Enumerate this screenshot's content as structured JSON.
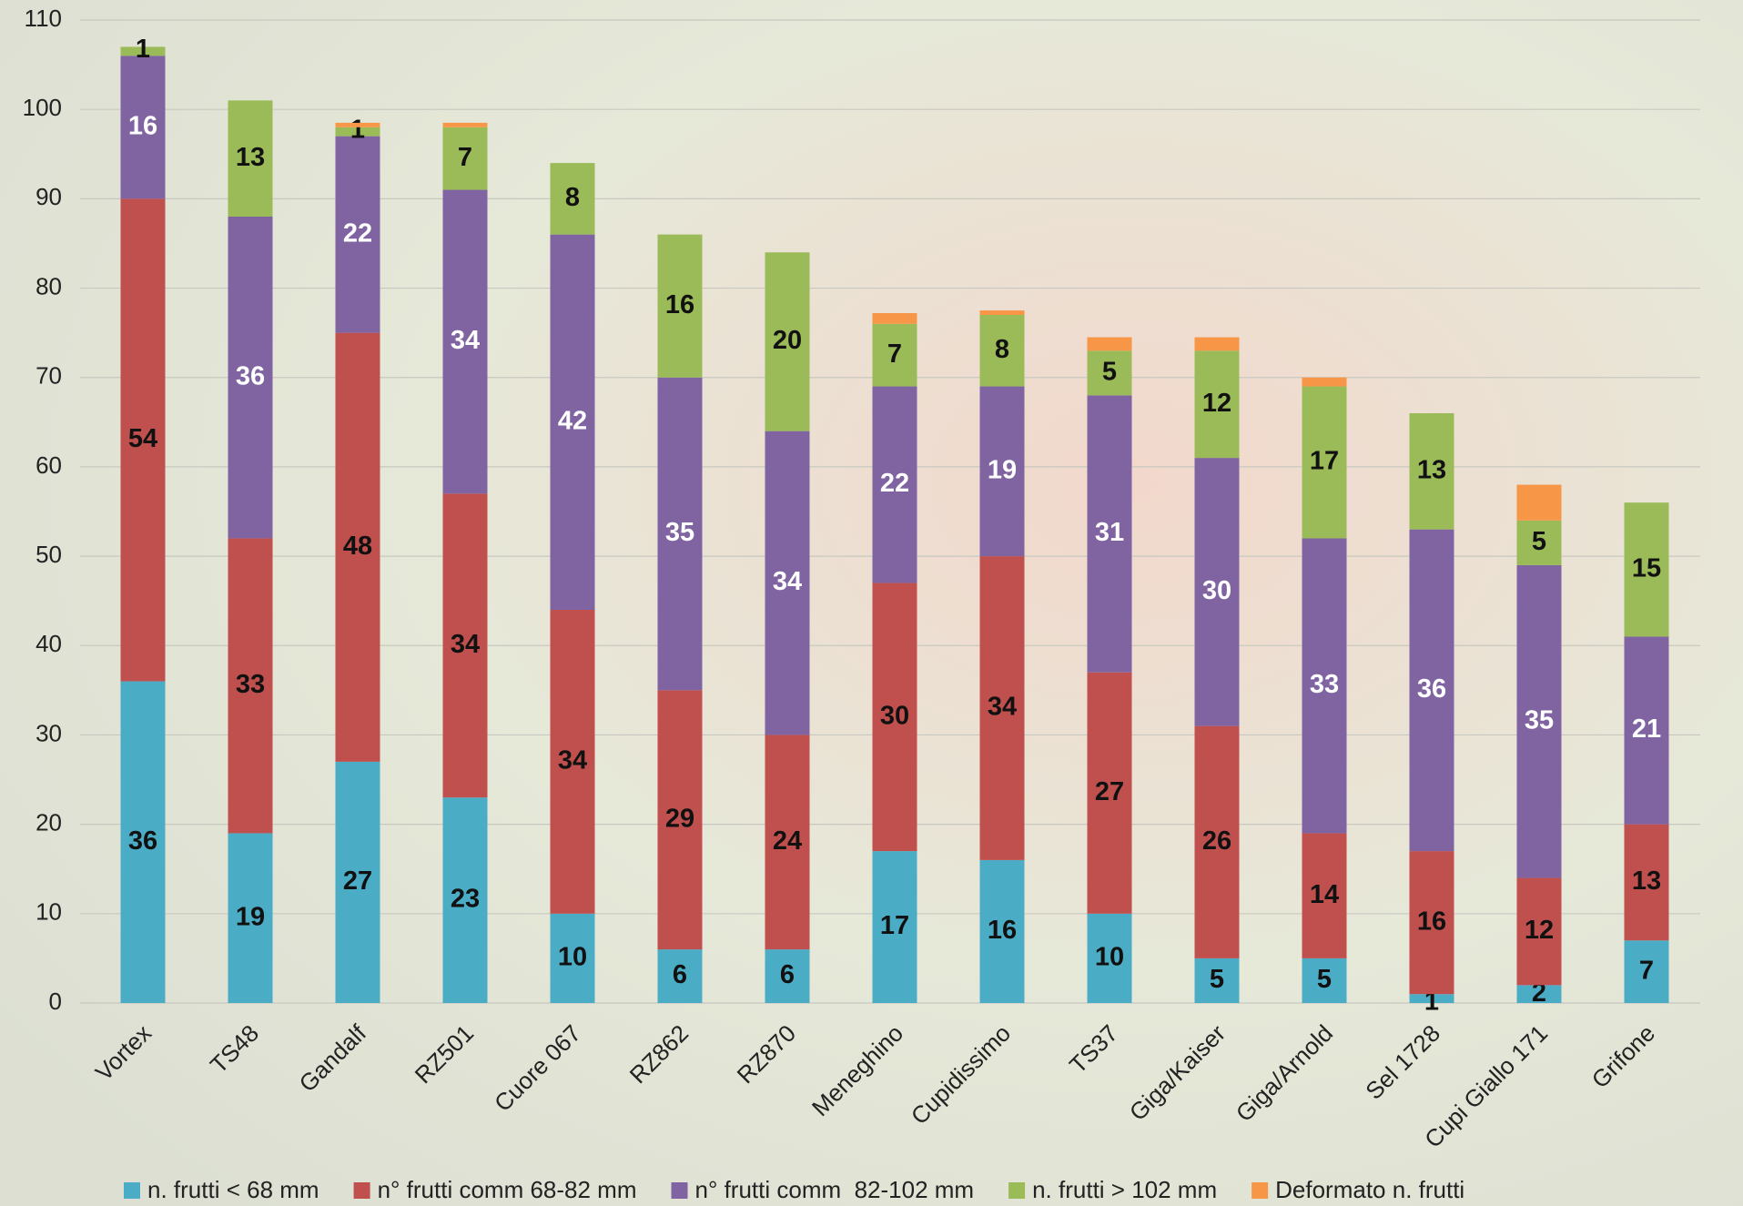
{
  "chart_data": {
    "type": "stacked_bar",
    "categories": [
      "Vortex",
      "TS48",
      "Gandalf",
      "RZ501",
      "Cuore 067",
      "RZ862",
      "RZ870",
      "Meneghino",
      "Cupidissimo",
      "TS37",
      "Giga/Kaiser",
      "Giga/Arnold",
      "Sel 1728",
      "Cupi Giallo 171",
      "Grifone"
    ],
    "series": [
      {
        "name": "n. frutti < 68 mm",
        "color": "#4bacc6",
        "label_color": "#111111",
        "values": [
          36,
          19,
          27,
          23,
          10,
          6,
          6,
          17,
          16,
          10,
          5,
          5,
          1,
          2,
          7
        ]
      },
      {
        "name": "n° frutti comm 68-82 mm",
        "color": "#c0504d",
        "label_color": "#111111",
        "values": [
          54,
          33,
          48,
          34,
          34,
          29,
          24,
          30,
          34,
          27,
          26,
          14,
          16,
          12,
          13
        ]
      },
      {
        "name": "n° frutti comm  82-102 mm",
        "color": "#8064a2",
        "label_color": "#ffffff",
        "values": [
          16,
          36,
          22,
          34,
          42,
          35,
          34,
          22,
          19,
          31,
          30,
          33,
          36,
          35,
          21
        ]
      },
      {
        "name": "n. frutti > 102 mm",
        "color": "#9bbb59",
        "label_color": "#111111",
        "values": [
          1,
          13,
          1,
          7,
          8,
          16,
          20,
          7,
          8,
          5,
          12,
          17,
          13,
          5,
          15
        ]
      },
      {
        "name": "Deformato n. frutti",
        "color": "#f79646",
        "values": [
          0,
          0,
          0.5,
          0.5,
          0,
          0,
          0,
          1.2,
          0.5,
          1.5,
          1.5,
          1,
          0,
          4,
          0
        ]
      }
    ],
    "ylim": [
      0,
      110
    ],
    "yticks": [
      0,
      10,
      20,
      30,
      40,
      50,
      60,
      70,
      80,
      90,
      100,
      110
    ],
    "grid": true
  }
}
